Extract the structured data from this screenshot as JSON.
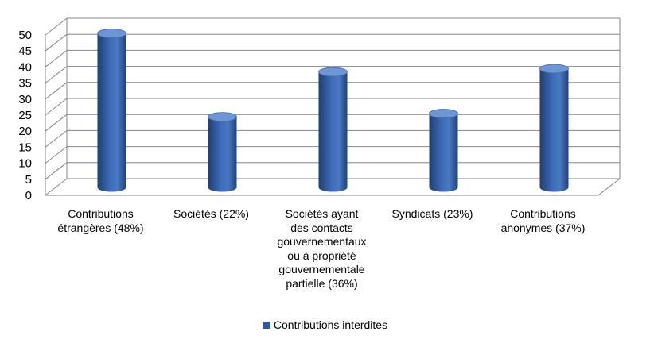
{
  "chart_data": {
    "type": "bar",
    "bar_style": "3d-cylinder",
    "categories": [
      "Contributions\nétrangères (48%)",
      "Sociétés (22%)",
      "Sociétés ayant\ndes contacts\ngouvernementaux\nou à propriété\ngouvernementale\npartielle (36%)",
      "Syndicats (23%)",
      "Contributions\nanonymes (37%)"
    ],
    "series": [
      {
        "name": "Contributions interdites",
        "values": [
          48,
          22,
          36,
          23,
          37
        ],
        "color": "#2E5AA0"
      }
    ],
    "ylim": [
      0,
      50
    ],
    "yticks": [
      "0",
      "5",
      "10",
      "15",
      "20",
      "25",
      "30",
      "35",
      "40",
      "45",
      "50"
    ],
    "grid": true,
    "legend_position": "bottom",
    "colors": {
      "bar_dark": "#1F3E73",
      "bar_mid": "#3D6CB8",
      "bar_light": "#6F95D2",
      "grid": "#868686"
    }
  }
}
